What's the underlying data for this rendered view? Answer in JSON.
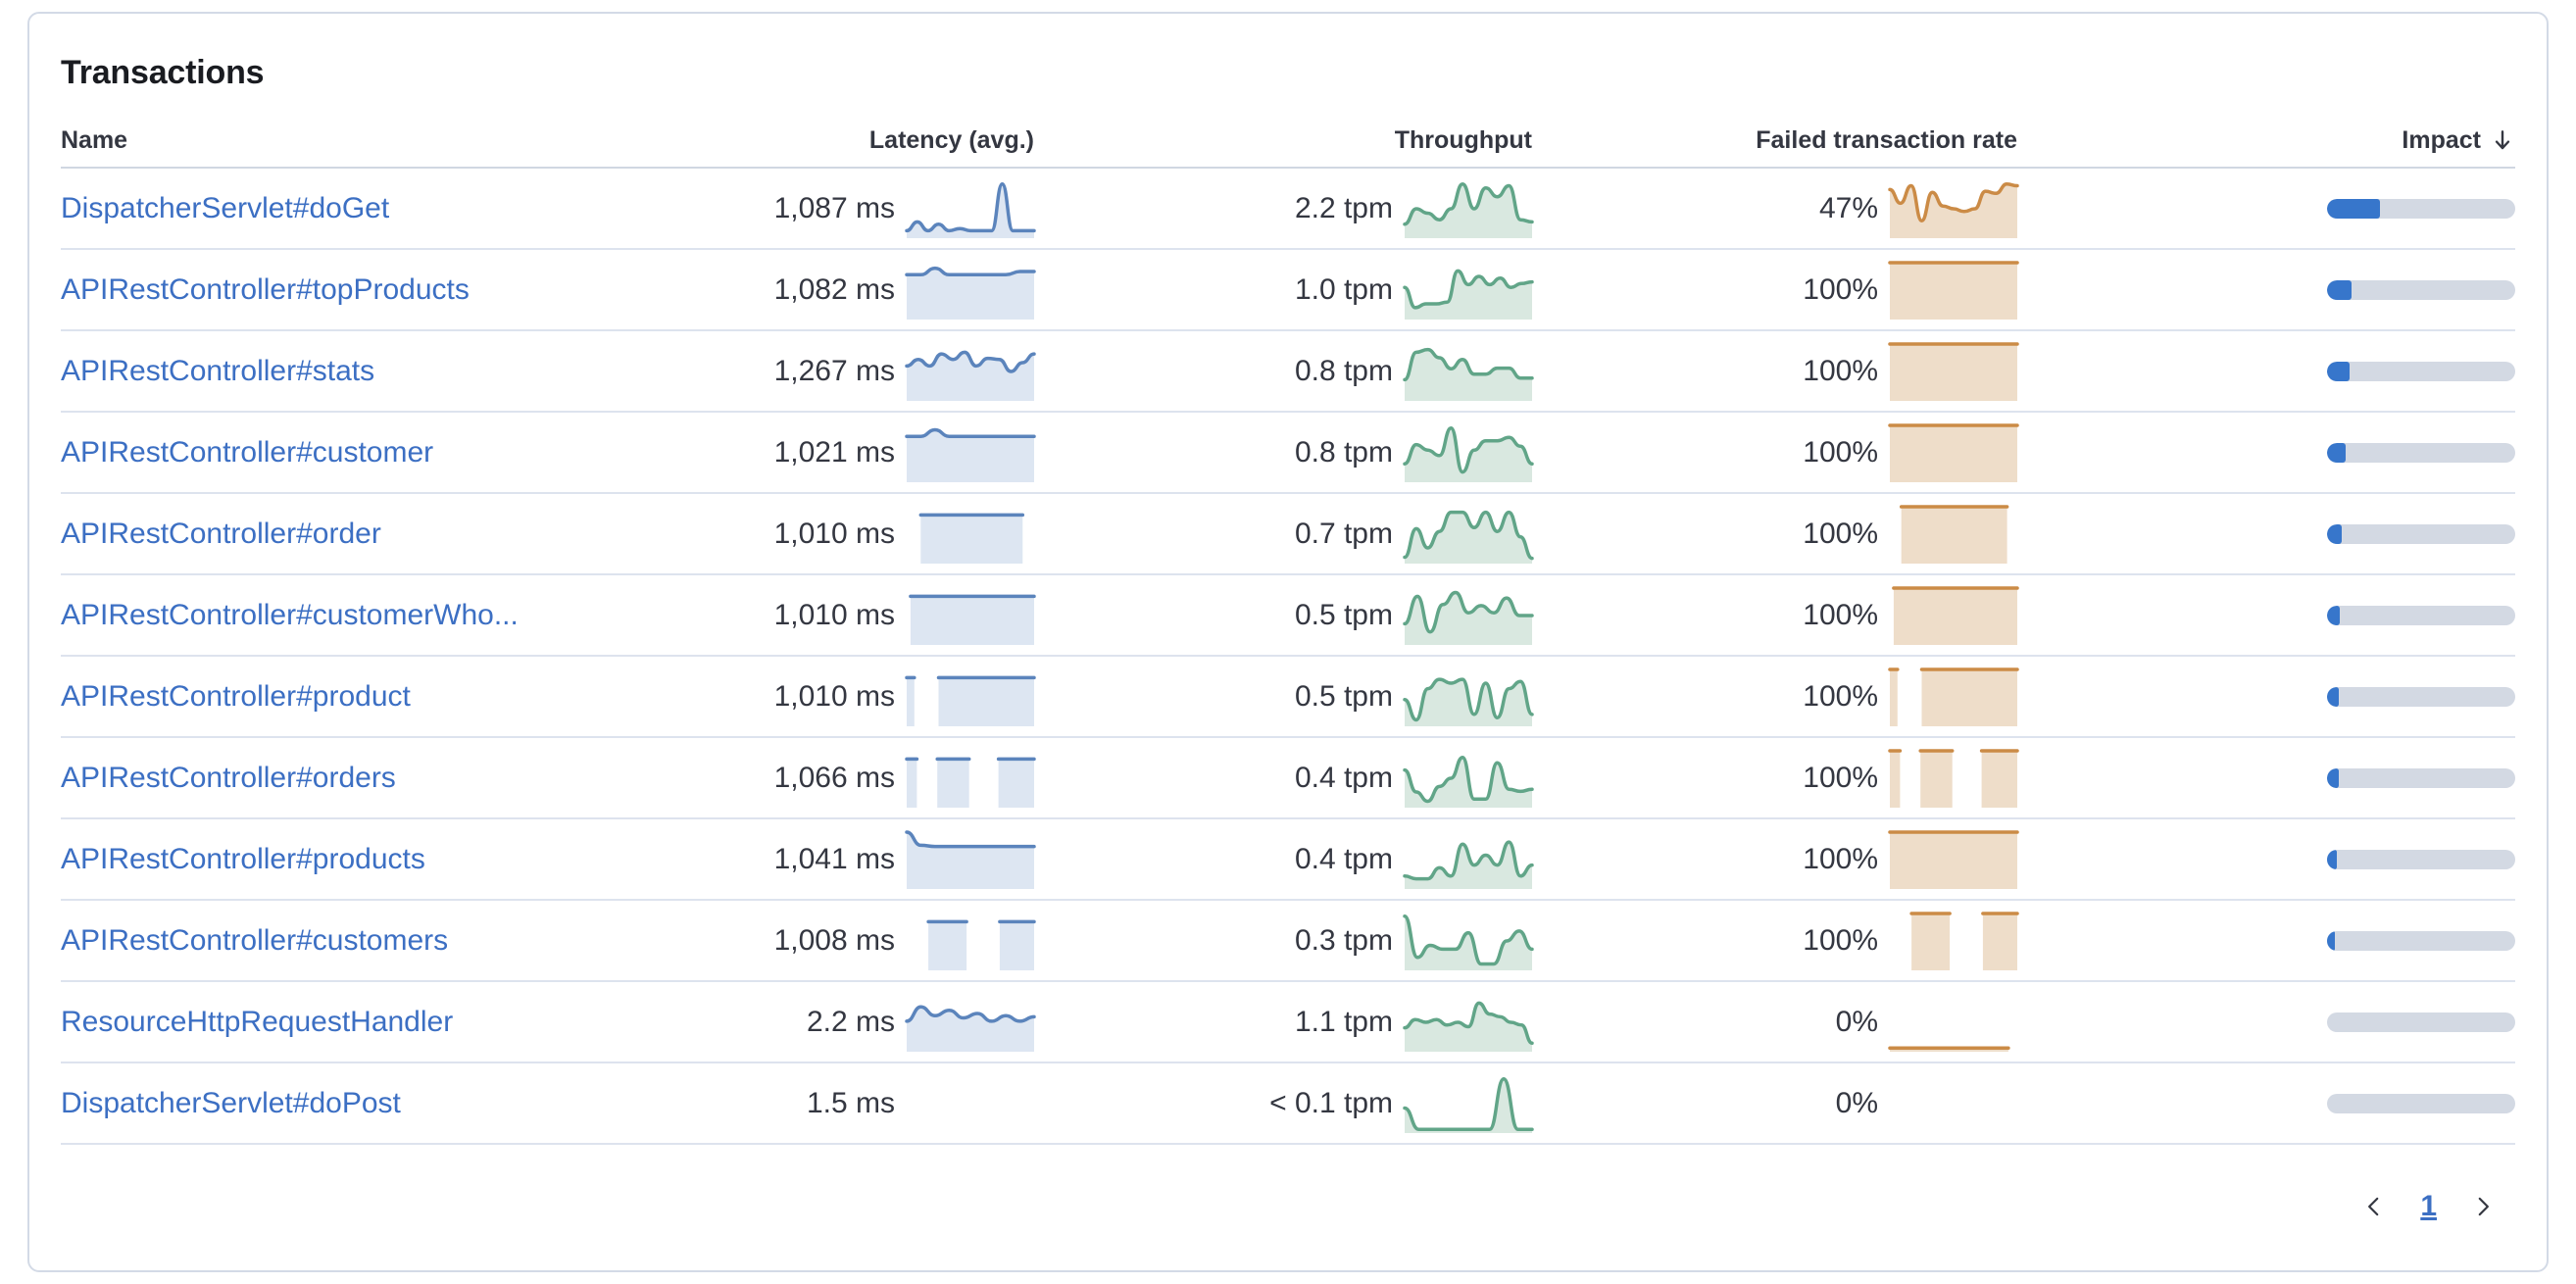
{
  "panel": {
    "title": "Transactions"
  },
  "colors": {
    "link": "#3c6fc3",
    "latency": {
      "line": "#5b84bc",
      "fill": "#dde6f2"
    },
    "throughput": {
      "line": "#61a588",
      "fill": "#d9e8e0"
    },
    "failed": {
      "line": "#cb8b46",
      "fill": "#eeddc9"
    },
    "impact_fill": "#3776cb",
    "impact_track": "#d3d9e3"
  },
  "table": {
    "columns": [
      {
        "key": "name",
        "label": "Name"
      },
      {
        "key": "latency",
        "label": "Latency (avg.)"
      },
      {
        "key": "throughput",
        "label": "Throughput"
      },
      {
        "key": "failed",
        "label": "Failed transaction rate"
      },
      {
        "key": "impact",
        "label": "Impact",
        "sorted": "desc"
      }
    ],
    "rows": [
      {
        "name": "DispatcherServlet#doGet",
        "latency": "1,087 ms",
        "latency_spark": [
          {
            "y": [
              0.1,
              0.26,
              0.1,
              0.22,
              0.1,
              0.14,
              0.1,
              0.1,
              0.1,
              0.95,
              0.1,
              0.1,
              0.1
            ]
          }
        ],
        "throughput": "2.2 tpm",
        "throughput_spark": [
          {
            "y": [
              0.22,
              0.5,
              0.42,
              0.3,
              0.5,
              0.95,
              0.5,
              0.88,
              0.72,
              0.92,
              0.3,
              0.26
            ]
          }
        ],
        "failed_rate": "47%",
        "failed_spark": [
          {
            "y": [
              0.85,
              0.6,
              0.92,
              0.28,
              0.8,
              0.55,
              0.5,
              0.45,
              0.5,
              0.82,
              0.78,
              0.95,
              0.92
            ]
          }
        ],
        "impact_pct": 28
      },
      {
        "name": "APIRestController#topProducts",
        "latency": "1,082 ms",
        "latency_spark": [
          {
            "y": [
              0.78,
              0.78,
              0.9,
              0.78,
              0.78,
              0.78,
              0.78,
              0.78,
              0.84,
              0.84
            ]
          }
        ],
        "throughput": "1.0 tpm",
        "throughput_spark": [
          {
            "y": [
              0.55,
              0.18,
              0.25,
              0.25,
              0.28,
              0.85,
              0.6,
              0.75,
              0.6,
              0.72,
              0.55,
              0.62,
              0.65
            ]
          }
        ],
        "failed_rate": "100%",
        "failed_spark": [
          {
            "y": [
              1,
              1
            ]
          }
        ],
        "impact_pct": 13
      },
      {
        "name": "APIRestController#stats",
        "latency": "1,267 ms",
        "latency_spark": [
          {
            "y": [
              0.6,
              0.72,
              0.6,
              0.82,
              0.72,
              0.85,
              0.6,
              0.74,
              0.72,
              0.5,
              0.66,
              0.82
            ]
          }
        ],
        "throughput": "0.8 tpm",
        "throughput_spark": [
          {
            "y": [
              0.35,
              0.85,
              0.9,
              0.75,
              0.55,
              0.72,
              0.45,
              0.45,
              0.56,
              0.56,
              0.38,
              0.38
            ]
          }
        ],
        "failed_rate": "100%",
        "failed_spark": [
          {
            "y": [
              1,
              1
            ]
          }
        ],
        "impact_pct": 12
      },
      {
        "name": "APIRestController#customer",
        "latency": "1,021 ms",
        "latency_spark": [
          {
            "y": [
              0.8,
              0.8,
              0.92,
              0.8,
              0.8,
              0.8,
              0.8,
              0.8,
              0.8,
              0.8
            ]
          }
        ],
        "throughput": "0.8 tpm",
        "throughput_spark": [
          {
            "y": [
              0.3,
              0.65,
              0.55,
              0.45,
              0.95,
              0.15,
              0.55,
              0.72,
              0.72,
              0.78,
              0.62,
              0.3
            ]
          }
        ],
        "failed_rate": "100%",
        "failed_spark": [
          {
            "y": [
              1,
              1
            ]
          }
        ],
        "impact_pct": 10
      },
      {
        "name": "APIRestController#order",
        "latency": "1,010 ms",
        "latency_spark": [
          {
            "x0": 0.11,
            "x1": 0.91,
            "y": [
              0.85,
              0.85
            ]
          }
        ],
        "throughput": "0.7 tpm",
        "throughput_spark": [
          {
            "y": [
              0.08,
              0.6,
              0.25,
              0.55,
              0.9,
              0.9,
              0.62,
              0.9,
              0.55,
              0.9,
              0.45,
              0.06
            ]
          }
        ],
        "failed_rate": "100%",
        "failed_spark": [
          {
            "x0": 0.09,
            "x1": 0.92,
            "y": [
              1,
              1
            ]
          }
        ],
        "impact_pct": 8
      },
      {
        "name": "APIRestController#customerWho...",
        "latency": "1,010 ms",
        "latency_spark": [
          {
            "x0": 0.03,
            "x1": 1,
            "y": [
              0.85,
              0.85
            ]
          }
        ],
        "throughput": "0.5 tpm",
        "throughput_spark": [
          {
            "y": [
              0.35,
              0.85,
              0.2,
              0.7,
              0.92,
              0.55,
              0.68,
              0.55,
              0.82,
              0.5,
              0.5
            ]
          }
        ],
        "failed_rate": "100%",
        "failed_spark": [
          {
            "x0": 0.03,
            "x1": 1,
            "y": [
              1,
              1
            ]
          }
        ],
        "impact_pct": 7
      },
      {
        "name": "APIRestController#product",
        "latency": "1,010 ms",
        "latency_spark": [
          {
            "x0": 0,
            "x1": 0.06,
            "y": [
              0.85,
              0.85
            ]
          },
          {
            "x0": 0.25,
            "x1": 1,
            "y": [
              0.85,
              0.85
            ]
          }
        ],
        "throughput": "0.5 tpm",
        "throughput_spark": [
          {
            "y": [
              0.45,
              0.08,
              0.65,
              0.82,
              0.75,
              0.82,
              0.18,
              0.75,
              0.12,
              0.65,
              0.78,
              0.18
            ]
          }
        ],
        "failed_rate": "100%",
        "failed_spark": [
          {
            "x0": 0,
            "x1": 0.06,
            "y": [
              1,
              1
            ]
          },
          {
            "x0": 0.25,
            "x1": 1,
            "y": [
              1,
              1
            ]
          }
        ],
        "impact_pct": 6
      },
      {
        "name": "APIRestController#orders",
        "latency": "1,066 ms",
        "latency_spark": [
          {
            "x0": 0,
            "x1": 0.08,
            "y": [
              0.85,
              0.85
            ]
          },
          {
            "x0": 0.24,
            "x1": 0.49,
            "y": [
              0.85,
              0.85
            ]
          },
          {
            "x0": 0.72,
            "x1": 1,
            "y": [
              0.85,
              0.85
            ]
          }
        ],
        "throughput": "0.4 tpm",
        "throughput_spark": [
          {
            "y": [
              0.65,
              0.25,
              0.08,
              0.35,
              0.5,
              0.88,
              0.12,
              0.12,
              0.78,
              0.3,
              0.26,
              0.3
            ]
          }
        ],
        "failed_rate": "100%",
        "failed_spark": [
          {
            "x0": 0,
            "x1": 0.08,
            "y": [
              1,
              1
            ]
          },
          {
            "x0": 0.24,
            "x1": 0.49,
            "y": [
              1,
              1
            ]
          },
          {
            "x0": 0.72,
            "x1": 1,
            "y": [
              1,
              1
            ]
          }
        ],
        "impact_pct": 6
      },
      {
        "name": "APIRestController#products",
        "latency": "1,041 ms",
        "latency_spark": [
          {
            "y": [
              1.0,
              0.76,
              0.74,
              0.74,
              0.74,
              0.74,
              0.74,
              0.74,
              0.74,
              0.74
            ]
          }
        ],
        "throughput": "0.4 tpm",
        "throughput_spark": [
          {
            "y": [
              0.2,
              0.15,
              0.15,
              0.35,
              0.2,
              0.78,
              0.4,
              0.58,
              0.4,
              0.82,
              0.2,
              0.4
            ]
          }
        ],
        "failed_rate": "100%",
        "failed_spark": [
          {
            "y": [
              1,
              1
            ]
          }
        ],
        "impact_pct": 5
      },
      {
        "name": "APIRestController#customers",
        "latency": "1,008 ms",
        "latency_spark": [
          {
            "x0": 0.17,
            "x1": 0.47,
            "y": [
              0.85,
              0.85
            ]
          },
          {
            "x0": 0.73,
            "x1": 1,
            "y": [
              0.85,
              0.85
            ]
          }
        ],
        "throughput": "0.3 tpm",
        "throughput_spark": [
          {
            "y": [
              0.95,
              0.2,
              0.42,
              0.35,
              0.35,
              0.65,
              0.08,
              0.08,
              0.5,
              0.68,
              0.35
            ]
          }
        ],
        "failed_rate": "100%",
        "failed_spark": [
          {
            "x0": 0.17,
            "x1": 0.47,
            "y": [
              1,
              1
            ]
          },
          {
            "x0": 0.73,
            "x1": 1,
            "y": [
              1,
              1
            ]
          }
        ],
        "impact_pct": 4
      },
      {
        "name": "ResourceHttpRequestHandler",
        "latency": "2.2 ms",
        "latency_spark": [
          {
            "y": [
              0.52,
              0.78,
              0.62,
              0.72,
              0.58,
              0.66,
              0.52,
              0.62,
              0.52,
              0.6
            ]
          }
        ],
        "throughput": "1.1 tpm",
        "throughput_spark": [
          {
            "y": [
              0.4,
              0.55,
              0.5,
              0.55,
              0.45,
              0.5,
              0.42,
              0.85,
              0.65,
              0.6,
              0.5,
              0.45,
              0.12
            ]
          }
        ],
        "failed_rate": "0%",
        "failed_spark": [
          {
            "x0": 0,
            "x1": 0.93,
            "y": [
              0.03,
              0.03
            ]
          }
        ],
        "impact_pct": 0
      },
      {
        "name": "DispatcherServlet#doPost",
        "latency": "1.5 ms",
        "latency_spark": null,
        "throughput": "< 0.1 tpm",
        "throughput_spark": [
          {
            "y": [
              0.42,
              0.03,
              0.03,
              0.03,
              0.03,
              0.03,
              0.03,
              0.95,
              0.03,
              0.03
            ]
          }
        ],
        "failed_rate": "0%",
        "failed_spark": null,
        "impact_pct": 0
      }
    ]
  },
  "pagination": {
    "current_page": "1"
  }
}
